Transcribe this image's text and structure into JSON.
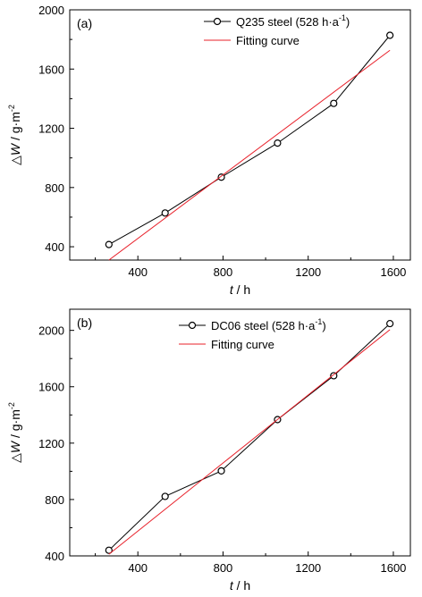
{
  "chart_data": [
    {
      "type": "line",
      "panel_label": "(a)",
      "x": [
        264,
        528,
        792,
        1056,
        1320,
        1584
      ],
      "series": [
        {
          "name": "Q235 steel (528 h·a",
          "name_sup": "-1",
          "name_tail": ")",
          "values": [
            415,
            628,
            870,
            1100,
            1368,
            1828
          ],
          "color": "#000000",
          "marker": "circle"
        },
        {
          "name": "Fitting curve",
          "values": [
            310,
            1727
          ],
          "x": [
            264,
            1584
          ],
          "color": "#e8202a",
          "marker": "none"
        }
      ],
      "xlabel_italic": "t",
      "xlabel_rest": " / h",
      "ylabel_delta": "△",
      "ylabel_italic": "W",
      "ylabel_rest": " / g·m",
      "ylabel_sup": "-2",
      "xlim": [
        80,
        1680
      ],
      "ylim": [
        310,
        2000
      ],
      "xticks": [
        400,
        800,
        1200,
        1600
      ],
      "yticks": [
        400,
        800,
        1200,
        1600,
        2000
      ],
      "legend_position": "top-right",
      "grid": false
    },
    {
      "type": "line",
      "panel_label": "(b)",
      "x": [
        264,
        528,
        792,
        1056,
        1320,
        1584
      ],
      "series": [
        {
          "name": "DC06 steel (528 h·a",
          "name_sup": "-1",
          "name_tail": ")",
          "values": [
            440,
            822,
            1003,
            1367,
            1678,
            2048
          ],
          "color": "#000000",
          "marker": "circle"
        },
        {
          "name": "Fitting curve",
          "values": [
            412,
            2005
          ],
          "x": [
            264,
            1584
          ],
          "color": "#e8202a",
          "marker": "none"
        }
      ],
      "xlabel_italic": "t",
      "xlabel_rest": " / h",
      "ylabel_delta": "△",
      "ylabel_italic": "W",
      "ylabel_rest": " / g·m",
      "ylabel_sup": "-2",
      "xlim": [
        80,
        1680
      ],
      "ylim": [
        400,
        2150
      ],
      "xticks": [
        400,
        800,
        1200,
        1600
      ],
      "yticks": [
        400,
        800,
        1200,
        1600,
        2000
      ],
      "legend_position": "top-left",
      "grid": false
    }
  ]
}
